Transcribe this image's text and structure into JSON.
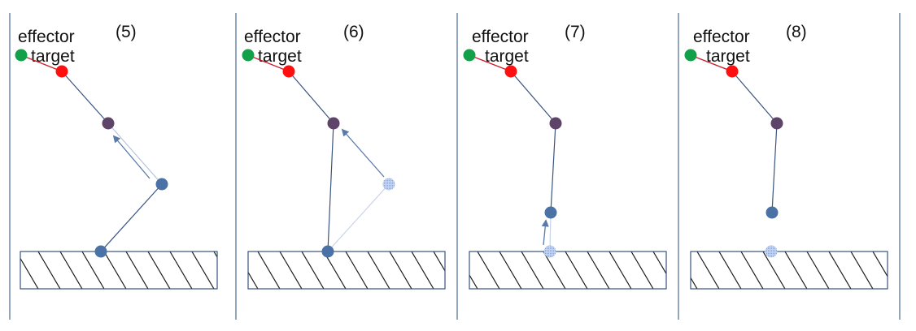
{
  "colors": {
    "divider": "#4a6a96",
    "target": "#12a048",
    "effector": "#ff1010",
    "end_link": "#cc1f2a",
    "joint_mid": "#5e4468",
    "joint_base": "#4a72a6",
    "joint_ghost": "#b7c4de",
    "link": "#3a5480",
    "arrow": "#5a7aa8",
    "hatch": "#1a1a1a"
  },
  "panels": [
    {
      "label": "(5)",
      "effector_label": "effector",
      "target_label": "target"
    },
    {
      "label": "(6)",
      "effector_label": "effector",
      "target_label": "target"
    },
    {
      "label": "(7)",
      "effector_label": "effector",
      "target_label": "target"
    },
    {
      "label": "(8)",
      "effector_label": "effector",
      "target_label": "target"
    }
  ]
}
